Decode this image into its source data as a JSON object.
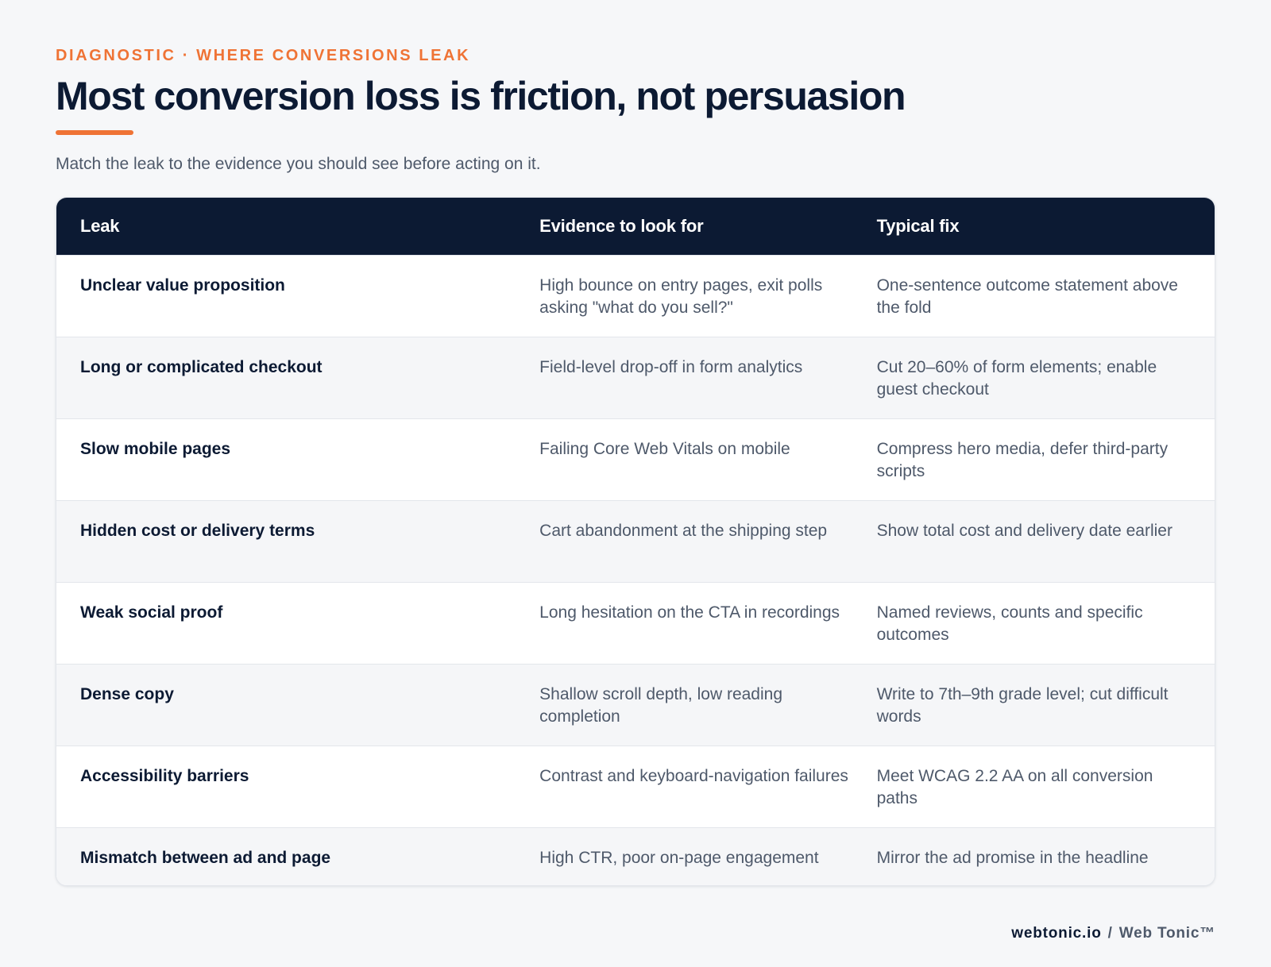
{
  "header": {
    "eyebrow": "DIAGNOSTIC · WHERE CONVERSIONS LEAK",
    "title": "Most conversion loss is friction, not persuasion",
    "subtitle": "Match the leak to the evidence you should see before acting on it."
  },
  "table": {
    "columns": [
      "Leak",
      "Evidence to look for",
      "Typical fix"
    ],
    "rows": [
      {
        "leak": "Unclear value proposition",
        "evidence": "High bounce on entry pages, exit polls asking \"what do you sell?\"",
        "fix": "One-sentence outcome statement above the fold"
      },
      {
        "leak": "Long or complicated checkout",
        "evidence": "Field-level drop-off in form analytics",
        "fix": "Cut 20–60% of form elements; enable guest checkout"
      },
      {
        "leak": "Slow mobile pages",
        "evidence": "Failing Core Web Vitals on mobile",
        "fix": "Compress hero media, defer third-party scripts"
      },
      {
        "leak": "Hidden cost or delivery terms",
        "evidence": "Cart abandonment at the shipping step",
        "fix": "Show total cost and delivery date earlier"
      },
      {
        "leak": "Weak social proof",
        "evidence": "Long hesitation on the CTA in recordings",
        "fix": "Named reviews, counts and specific outcomes"
      },
      {
        "leak": "Dense copy",
        "evidence": "Shallow scroll depth, low reading completion",
        "fix": "Write to 7th–9th grade level; cut difficult words"
      },
      {
        "leak": "Accessibility barriers",
        "evidence": "Contrast and keyboard-navigation failures",
        "fix": "Meet WCAG 2.2 AA on all conversion paths"
      },
      {
        "leak": "Mismatch between ad and page",
        "evidence": "High CTR, poor on-page engagement",
        "fix": "Mirror the ad promise in the headline"
      }
    ]
  },
  "footer": {
    "domain": "webtonic.io",
    "separator": "/",
    "brand": "Web Tonic™"
  },
  "colors": {
    "accent": "#ef7335",
    "navy": "#0c1a33",
    "body_text": "#4e596a",
    "background": "#f6f7f9"
  }
}
